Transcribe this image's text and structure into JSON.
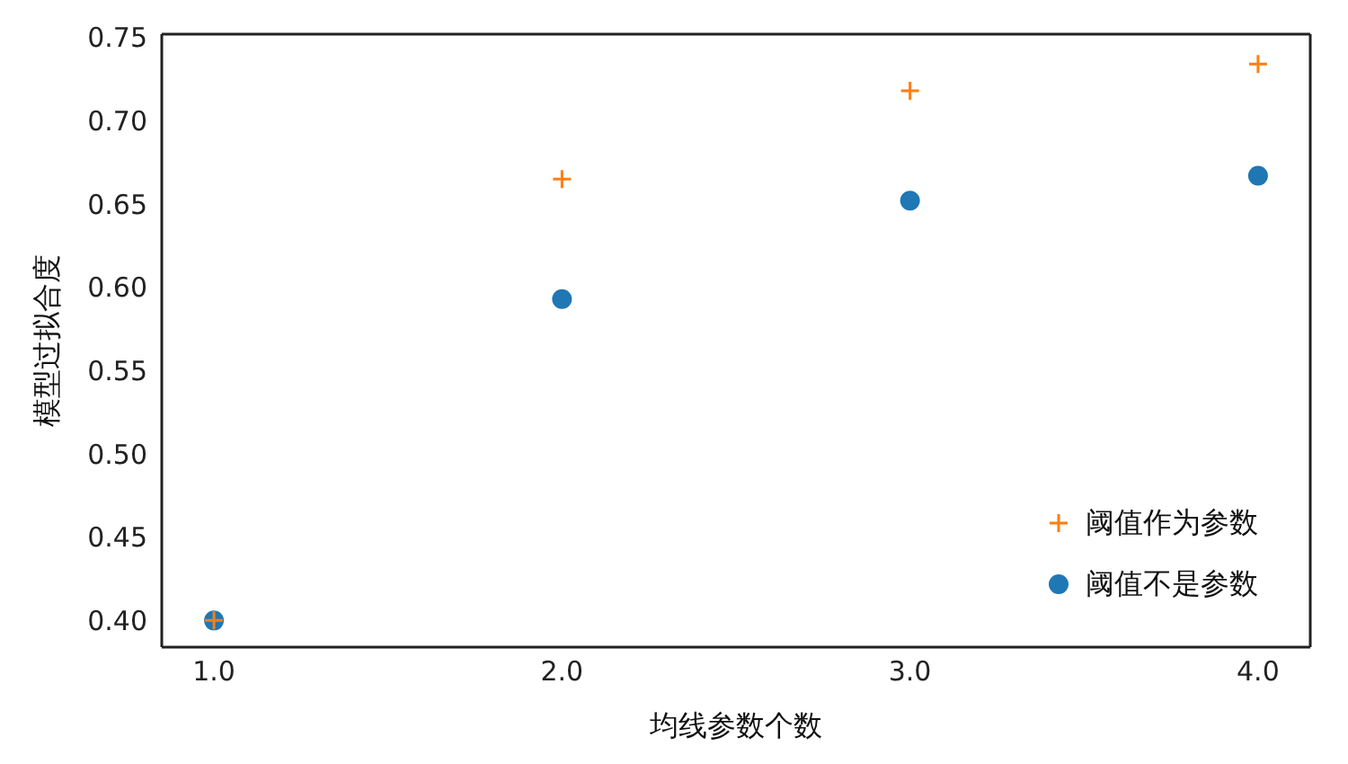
{
  "chart_data": {
    "type": "scatter",
    "xlabel": "均线参数个数",
    "ylabel": "模型过拟合度",
    "x": [
      1,
      2,
      3,
      4
    ],
    "series": [
      {
        "name": "阈值作为参数",
        "color": "#ff7f0e",
        "marker": "cross",
        "values": [
          0.4,
          0.665,
          0.718,
          0.734
        ]
      },
      {
        "name": "阈值不是参数",
        "color": "#1f77b4",
        "marker": "circle",
        "values": [
          0.4,
          0.593,
          0.652,
          0.667
        ]
      }
    ],
    "xlim": [
      0.85,
      4.15
    ],
    "xticks": [
      {
        "value": 1,
        "label": "1.0"
      },
      {
        "value": 2,
        "label": "2.0"
      },
      {
        "value": 3,
        "label": "3.0"
      },
      {
        "value": 4,
        "label": "4.0"
      }
    ],
    "ylim": [
      0.384,
      0.752
    ],
    "yticks": [
      {
        "value": 0.4,
        "label": "0.40"
      },
      {
        "value": 0.45,
        "label": "0.45"
      },
      {
        "value": 0.5,
        "label": "0.50"
      },
      {
        "value": 0.55,
        "label": "0.55"
      },
      {
        "value": 0.6,
        "label": "0.60"
      },
      {
        "value": 0.65,
        "label": "0.65"
      },
      {
        "value": 0.7,
        "label": "0.70"
      },
      {
        "value": 0.75,
        "label": "0.75"
      }
    ],
    "grid": false,
    "legend": "bottom right"
  }
}
